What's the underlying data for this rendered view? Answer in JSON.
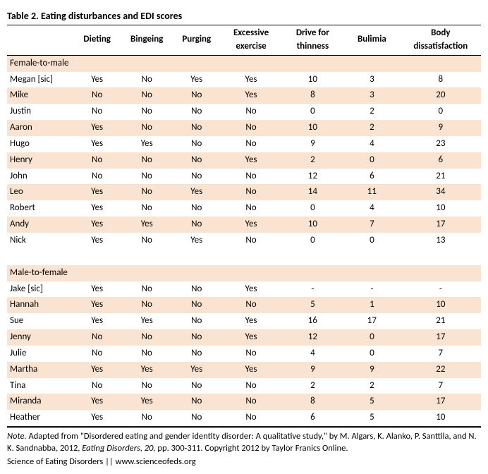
{
  "title": "Table 2. Eating disturbances and EDI scores",
  "columns": [
    "",
    "Dieting",
    "Bingeing",
    "Purging",
    "Excessive exercise",
    "Drive for thinness",
    "Bulimia",
    "Body dissatisfaction"
  ],
  "col_widths": [
    "14%",
    "10%",
    "11%",
    "10%",
    "13%",
    "13%",
    "12%",
    "17%"
  ],
  "stripe_color": "#fbe3d2",
  "sections": [
    {
      "label": "Female-to-male",
      "rows": [
        {
          "name": "Megan [sic]",
          "vals": [
            "Yes",
            "No",
            "Yes",
            "Yes",
            "10",
            "3",
            "8"
          ]
        },
        {
          "name": "Mike",
          "vals": [
            "No",
            "No",
            "No",
            "Yes",
            "8",
            "3",
            "20"
          ]
        },
        {
          "name": "Justin",
          "vals": [
            "No",
            "No",
            "No",
            "No",
            "0",
            "2",
            "0"
          ]
        },
        {
          "name": "Aaron",
          "vals": [
            "Yes",
            "No",
            "No",
            "No",
            "10",
            "2",
            "9"
          ]
        },
        {
          "name": "Hugo",
          "vals": [
            "Yes",
            "Yes",
            "No",
            "No",
            "9",
            "4",
            "23"
          ]
        },
        {
          "name": "Henry",
          "vals": [
            "No",
            "No",
            "No",
            "Yes",
            "2",
            "0",
            "6"
          ]
        },
        {
          "name": "John",
          "vals": [
            "No",
            "No",
            "No",
            "No",
            "12",
            "6",
            "21"
          ]
        },
        {
          "name": "Leo",
          "vals": [
            "Yes",
            "No",
            "Yes",
            "No",
            "14",
            "11",
            "34"
          ]
        },
        {
          "name": "Robert",
          "vals": [
            "Yes",
            "No",
            "No",
            "No",
            "0",
            "4",
            "10"
          ]
        },
        {
          "name": "Andy",
          "vals": [
            "Yes",
            "Yes",
            "No",
            "Yes",
            "10",
            "7",
            "17"
          ]
        },
        {
          "name": "Nick",
          "vals": [
            "Yes",
            "No",
            "Yes",
            "No",
            "0",
            "0",
            "13"
          ]
        }
      ]
    },
    {
      "label": "Male-to-female",
      "rows": [
        {
          "name": "Jake [sic]",
          "vals": [
            "Yes",
            "No",
            "No",
            "Yes",
            "-",
            "-",
            "-"
          ]
        },
        {
          "name": "Hannah",
          "vals": [
            "Yes",
            "No",
            "No",
            "No",
            "5",
            "1",
            "10"
          ]
        },
        {
          "name": "Sue",
          "vals": [
            "Yes",
            "Yes",
            "No",
            "Yes",
            "16",
            "17",
            "21"
          ]
        },
        {
          "name": "Jenny",
          "vals": [
            "No",
            "No",
            "No",
            "Yes",
            "12",
            "0",
            "17"
          ]
        },
        {
          "name": "Julie",
          "vals": [
            "No",
            "No",
            "No",
            "No",
            "4",
            "0",
            "7"
          ]
        },
        {
          "name": "Martha",
          "vals": [
            "Yes",
            "Yes",
            "Yes",
            "Yes",
            "9",
            "9",
            "22"
          ]
        },
        {
          "name": "Tina",
          "vals": [
            "No",
            "No",
            "No",
            "No",
            "2",
            "2",
            "7"
          ]
        },
        {
          "name": "Miranda",
          "vals": [
            "Yes",
            "Yes",
            "No",
            "No",
            "8",
            "5",
            "17"
          ]
        },
        {
          "name": "Heather",
          "vals": [
            "Yes",
            "No",
            "No",
            "No",
            "6",
            "5",
            "10"
          ]
        }
      ]
    }
  ],
  "note_label": "Note.",
  "note_text": " Adapted from \"Disordered eating and gender identity disorder: A qualitative study,\" by M. Algars, K. Alanko, P. Santtila, and N. K. Sandnabba, 2012, Eating Disorders, 20, pp. 300-311. Copyright 2012 by Taylor Franics Online.",
  "note_italic": "Eating Disorders, 20,",
  "footer": "Science of Eating Disorders || www.scienceofeds.org"
}
